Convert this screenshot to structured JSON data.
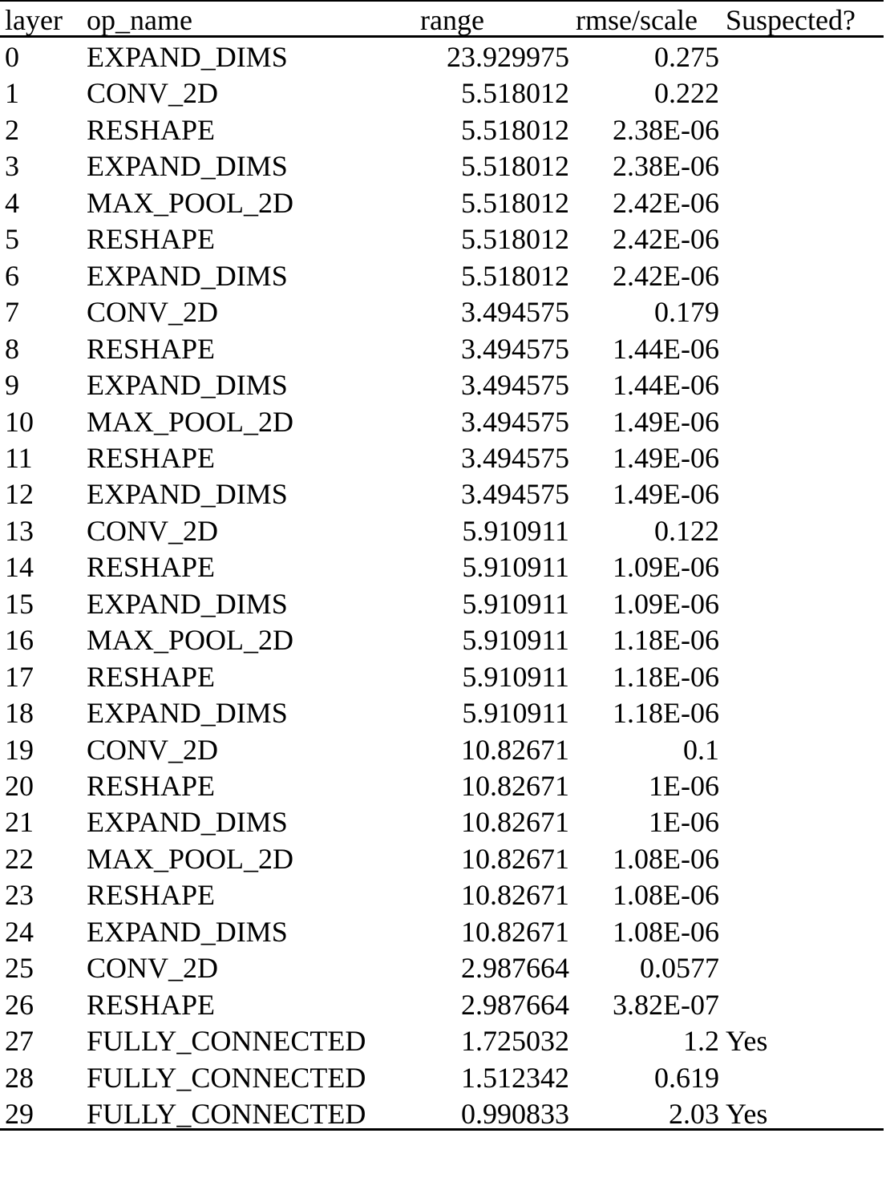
{
  "table": {
    "columns": [
      "layer",
      "op_name",
      "range",
      "rmse/scale",
      "Suspected?"
    ],
    "rows": [
      [
        "0",
        "EXPAND_DIMS",
        "23.929975",
        "0.275",
        ""
      ],
      [
        "1",
        "CONV_2D",
        "5.518012",
        "0.222",
        ""
      ],
      [
        "2",
        "RESHAPE",
        "5.518012",
        "2.38E-06",
        ""
      ],
      [
        "3",
        "EXPAND_DIMS",
        "5.518012",
        "2.38E-06",
        ""
      ],
      [
        "4",
        "MAX_POOL_2D",
        "5.518012",
        "2.42E-06",
        ""
      ],
      [
        "5",
        "RESHAPE",
        "5.518012",
        "2.42E-06",
        ""
      ],
      [
        "6",
        "EXPAND_DIMS",
        "5.518012",
        "2.42E-06",
        ""
      ],
      [
        "7",
        "CONV_2D",
        "3.494575",
        "0.179",
        ""
      ],
      [
        "8",
        "RESHAPE",
        "3.494575",
        "1.44E-06",
        ""
      ],
      [
        "9",
        "EXPAND_DIMS",
        "3.494575",
        "1.44E-06",
        ""
      ],
      [
        "10",
        "MAX_POOL_2D",
        "3.494575",
        "1.49E-06",
        ""
      ],
      [
        "11",
        "RESHAPE",
        "3.494575",
        "1.49E-06",
        ""
      ],
      [
        "12",
        "EXPAND_DIMS",
        "3.494575",
        "1.49E-06",
        ""
      ],
      [
        "13",
        "CONV_2D",
        "5.910911",
        "0.122",
        ""
      ],
      [
        "14",
        "RESHAPE",
        "5.910911",
        "1.09E-06",
        ""
      ],
      [
        "15",
        "EXPAND_DIMS",
        "5.910911",
        "1.09E-06",
        ""
      ],
      [
        "16",
        "MAX_POOL_2D",
        "5.910911",
        "1.18E-06",
        ""
      ],
      [
        "17",
        "RESHAPE",
        "5.910911",
        "1.18E-06",
        ""
      ],
      [
        "18",
        "EXPAND_DIMS",
        "5.910911",
        "1.18E-06",
        ""
      ],
      [
        "19",
        "CONV_2D",
        "10.82671",
        "0.1",
        ""
      ],
      [
        "20",
        "RESHAPE",
        "10.82671",
        "1E-06",
        ""
      ],
      [
        "21",
        "EXPAND_DIMS",
        "10.82671",
        "1E-06",
        ""
      ],
      [
        "22",
        "MAX_POOL_2D",
        "10.82671",
        "1.08E-06",
        ""
      ],
      [
        "23",
        "RESHAPE",
        "10.82671",
        "1.08E-06",
        ""
      ],
      [
        "24",
        "EXPAND_DIMS",
        "10.82671",
        "1.08E-06",
        ""
      ],
      [
        "25",
        "CONV_2D",
        "2.987664",
        "0.0577",
        ""
      ],
      [
        "26",
        "RESHAPE",
        "2.987664",
        "3.82E-07",
        ""
      ],
      [
        "27",
        "FULLY_CONNECTED",
        "1.725032",
        "1.2",
        "Yes"
      ],
      [
        "28",
        "FULLY_CONNECTED",
        "1.512342",
        "0.619",
        ""
      ],
      [
        "29",
        "FULLY_CONNECTED",
        "0.990833",
        "2.03",
        "Yes"
      ]
    ]
  }
}
